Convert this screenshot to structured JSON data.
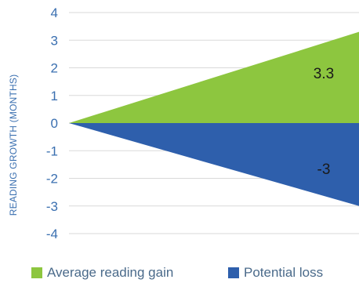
{
  "chart_data": {
    "type": "area",
    "ylabel": "READING GROWTH (MONTHS)",
    "xlabel": "",
    "ylim": [
      -4,
      4
    ],
    "yticks": [
      4,
      3,
      2,
      1,
      0,
      -1,
      -2,
      -3,
      -4
    ],
    "grid": true,
    "legend_position": "bottom",
    "x": [
      0,
      1
    ],
    "series": [
      {
        "name": "Average reading gain",
        "values": [
          0,
          3.3
        ],
        "color": "#8dc63f",
        "end_label": "3.3"
      },
      {
        "name": "Potential loss",
        "values": [
          0,
          -3
        ],
        "color": "#2e5fac",
        "end_label": "-3"
      }
    ]
  }
}
